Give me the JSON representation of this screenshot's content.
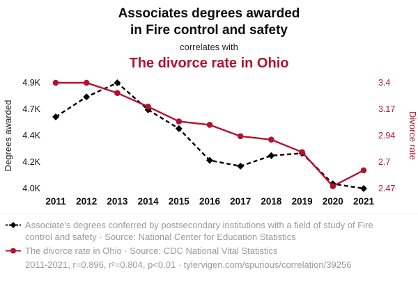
{
  "header": {
    "title_line1": "Associates degrees awarded",
    "title_line2": "in Fire control and safety",
    "connector": "correlates with",
    "red_title": "The divorce rate in Ohio"
  },
  "colors": {
    "accent": "#b3122f",
    "series_black": "#000000",
    "footer_gray": "#9a9a9a"
  },
  "chart_data": {
    "type": "line",
    "x": [
      2011,
      2012,
      2013,
      2014,
      2015,
      2016,
      2017,
      2018,
      2019,
      2020,
      2021
    ],
    "x_labels": [
      "2011",
      "2012",
      "2013",
      "2014",
      "2015",
      "2016",
      "2017",
      "2018",
      "2019",
      "2020",
      "2021"
    ],
    "series": [
      {
        "name": "Associates degrees awarded in Fire control and safety",
        "axis": "left",
        "color": "#000000",
        "marker": "diamond",
        "dashed": true,
        "values": [
          4610,
          4780,
          4900,
          4670,
          4510,
          4240,
          4190,
          4280,
          4300,
          4040,
          4000
        ]
      },
      {
        "name": "The divorce rate in Ohio",
        "axis": "right",
        "color": "#b3122f",
        "marker": "circle",
        "dashed": false,
        "values": [
          3.4,
          3.4,
          3.31,
          3.19,
          3.06,
          3.03,
          2.93,
          2.9,
          2.79,
          2.49,
          2.63
        ]
      }
    ],
    "left_axis": {
      "label": "Degrees awarded",
      "min": 4000,
      "max": 4900,
      "ticks": [
        "4.0K",
        "4.2K",
        "4.4K",
        "4.7K",
        "4.9K"
      ]
    },
    "right_axis": {
      "label": "Divorce rate",
      "min": 2.47,
      "max": 3.4,
      "ticks": [
        "2.47",
        "2.7",
        "2.94",
        "3.17",
        "3.4"
      ]
    },
    "legend_position": "bottom",
    "grid": false
  },
  "footer": {
    "series1": "Associate's degrees conferred by postsecondary institutions with a field of study of Fire control and safety · Source: National Center for Education Statistics",
    "series2": "The divorce rate in Ohio · Source: CDC National Vital Statistics",
    "stats": "2011-2021, r=0.896, r²=0.804, p<0.01 · tylervigen.com/spurious/correlation/39256"
  }
}
